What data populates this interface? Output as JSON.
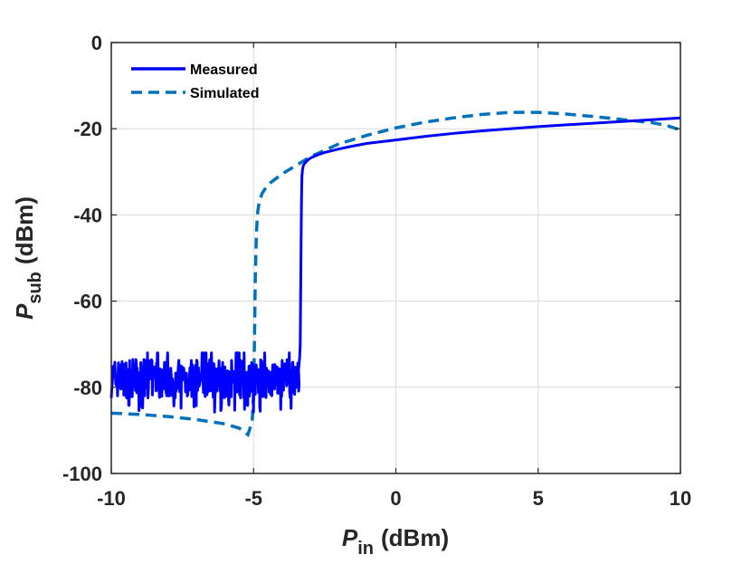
{
  "chart_data": {
    "type": "line",
    "title": "",
    "xlabel": {
      "main": "P",
      "sub": "in",
      "unit": "(dBm)"
    },
    "ylabel": {
      "main": "P",
      "sub": "sub",
      "unit": "(dBm)"
    },
    "xlim": [
      -10,
      10
    ],
    "ylim": [
      -100,
      0
    ],
    "xticks": [
      -10,
      -5,
      0,
      5,
      10
    ],
    "yticks": [
      0,
      -20,
      -40,
      -60,
      -80,
      -100
    ],
    "grid": true,
    "legend_position": "top-left",
    "colors": {
      "measured": "#0000ff",
      "simulated": "#0072bd",
      "axis": "#262626",
      "grid": "#d9d9d9"
    },
    "series": [
      {
        "name": "Measured",
        "style": "solid",
        "noise_region": {
          "x_range": [
            -10,
            -3.4
          ],
          "center": -78,
          "amplitude": 4.5,
          "spike_min": -86
        },
        "x": [
          -3.42,
          -3.38,
          -3.36,
          -3.35,
          -3.34,
          -3.33,
          -3.32,
          -3.31,
          -3.3,
          -3.28,
          -3.25,
          -3.2,
          -3.1,
          -3.0,
          -2.8,
          -2.5,
          -2.0,
          -1.5,
          -1.0,
          0,
          1,
          2,
          3,
          4,
          5,
          6,
          7,
          8,
          9,
          10
        ],
        "y": [
          -76,
          -73,
          -70,
          -62,
          -54,
          -46,
          -39,
          -34,
          -31,
          -29.5,
          -28.5,
          -28,
          -27.3,
          -26.8,
          -26.2,
          -25.5,
          -24.7,
          -24.0,
          -23.4,
          -22.6,
          -21.8,
          -21.1,
          -20.5,
          -20.0,
          -19.5,
          -19.1,
          -18.7,
          -18.3,
          -17.9,
          -17.5
        ]
      },
      {
        "name": "Simulated",
        "style": "dashed",
        "x": [
          -10,
          -9,
          -8,
          -7,
          -6,
          -5.5,
          -5.2,
          -5.05,
          -5.0,
          -4.97,
          -4.94,
          -4.9,
          -4.85,
          -4.8,
          -4.7,
          -4.5,
          -4.2,
          -4.0,
          -3.5,
          -3.0,
          -2.0,
          -1.0,
          0,
          1,
          2,
          3,
          4,
          5,
          6,
          7,
          8,
          9,
          9.5,
          10
        ],
        "y": [
          -86,
          -86.3,
          -86.8,
          -87.5,
          -88.5,
          -89.5,
          -91,
          -88,
          -82,
          -70,
          -55,
          -44,
          -39,
          -37,
          -35,
          -33,
          -31.5,
          -30.5,
          -28.5,
          -26.5,
          -23.5,
          -21.5,
          -19.8,
          -18.5,
          -17.5,
          -16.7,
          -16.2,
          -16.2,
          -16.6,
          -17.2,
          -17.9,
          -18.6,
          -19.2,
          -20.3
        ]
      }
    ]
  }
}
